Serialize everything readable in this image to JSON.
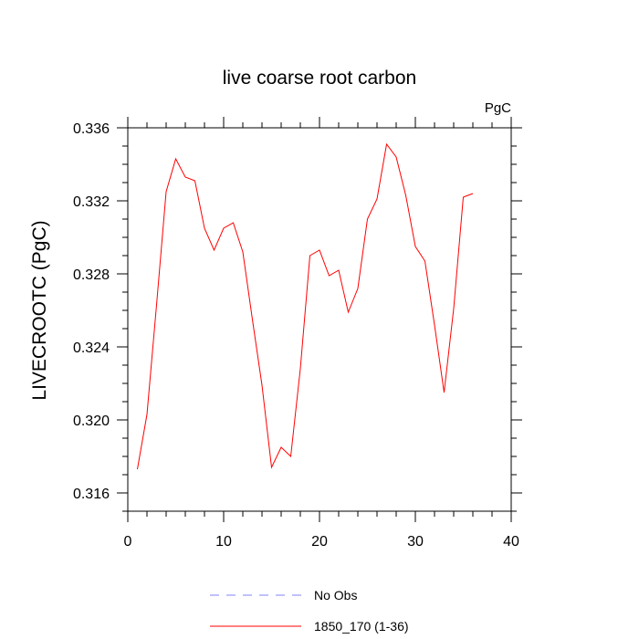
{
  "chart_data": {
    "type": "line",
    "title": "live coarse root carbon",
    "units_label": "PgC",
    "ylabel": "LIVECROOTC  (PgC)",
    "xlabel": "",
    "xlim": [
      0,
      40
    ],
    "ylim": [
      0.315,
      0.336
    ],
    "xticks": [
      0,
      10,
      20,
      30,
      40
    ],
    "xtick_labels": [
      "0",
      "10",
      "20",
      "30",
      "40"
    ],
    "yticks": [
      0.316,
      0.32,
      0.324,
      0.328,
      0.332,
      0.336
    ],
    "ytick_labels": [
      "0.316",
      "0.320",
      "0.324",
      "0.328",
      "0.332",
      "0.336"
    ],
    "grid": false,
    "legend_position": "bottom",
    "series": [
      {
        "name": "No Obs",
        "color": "#8080ff",
        "dash": "dashed",
        "x": [],
        "y": []
      },
      {
        "name": "1850_170 (1-36)",
        "color": "#ff0000",
        "dash": "solid",
        "x": [
          1,
          2,
          3,
          4,
          5,
          6,
          7,
          8,
          9,
          10,
          11,
          12,
          13,
          14,
          15,
          16,
          17,
          18,
          19,
          20,
          21,
          22,
          23,
          24,
          25,
          26,
          27,
          28,
          29,
          30,
          31,
          32,
          33,
          34,
          35,
          36
        ],
        "y": [
          0.3173,
          0.3203,
          0.3263,
          0.3325,
          0.3343,
          0.3333,
          0.3331,
          0.3305,
          0.3293,
          0.3305,
          0.3308,
          0.3292,
          0.3255,
          0.3219,
          0.3174,
          0.3185,
          0.318,
          0.3228,
          0.329,
          0.3293,
          0.3279,
          0.3282,
          0.3259,
          0.3272,
          0.331,
          0.3321,
          0.3351,
          0.3344,
          0.3323,
          0.3295,
          0.3287,
          0.3252,
          0.3215,
          0.3261,
          0.3322,
          0.3324
        ]
      }
    ]
  }
}
